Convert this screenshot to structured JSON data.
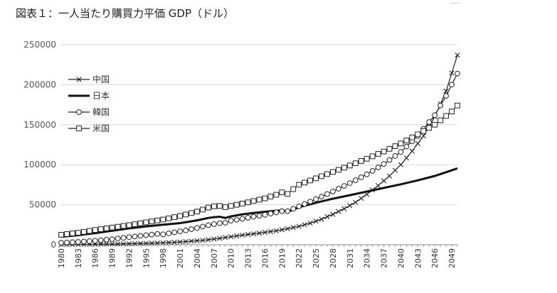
{
  "title": "図表１：一人当たり購買力平価 GDP（ドル）",
  "chart_data": {
    "type": "line",
    "title": "図表１：一人当たり購買力平価 GDP（ドル）",
    "xlabel": "",
    "ylabel": "",
    "ylim": [
      0,
      250000
    ],
    "yticks": [
      0,
      50000,
      100000,
      150000,
      200000,
      250000
    ],
    "ytick_labels": [
      "0",
      "50000",
      "100000",
      "150000",
      "200000",
      "250000"
    ],
    "xlim": [
      1980,
      2050
    ],
    "xtick_labels": [
      "1980",
      "1983",
      "1986",
      "1989",
      "1992",
      "1995",
      "1998",
      "2001",
      "2004",
      "2007",
      "2010",
      "2013",
      "2016",
      "2019",
      "2022",
      "2025",
      "2028",
      "2031",
      "2034",
      "2037",
      "2040",
      "2043",
      "2046",
      "2049"
    ],
    "grid": "horizontal",
    "legend_position": "top-left",
    "series": [
      {
        "name": "中国",
        "marker": "x",
        "color": "#222222",
        "points": [
          [
            1980,
            300
          ],
          [
            1985,
            600
          ],
          [
            1990,
            1000
          ],
          [
            1995,
            1800
          ],
          [
            2000,
            3000
          ],
          [
            2005,
            5500
          ],
          [
            2008,
            8000
          ],
          [
            2010,
            10000
          ],
          [
            2012,
            12000
          ],
          [
            2015,
            14500
          ],
          [
            2018,
            17500
          ],
          [
            2020,
            20000
          ],
          [
            2022,
            23000
          ],
          [
            2024,
            27000
          ],
          [
            2026,
            32000
          ],
          [
            2028,
            38000
          ],
          [
            2030,
            45000
          ],
          [
            2032,
            53000
          ],
          [
            2034,
            63000
          ],
          [
            2036,
            74000
          ],
          [
            2038,
            86000
          ],
          [
            2040,
            100000
          ],
          [
            2042,
            117000
          ],
          [
            2044,
            136000
          ],
          [
            2046,
            160000
          ],
          [
            2048,
            192000
          ],
          [
            2050,
            237000
          ]
        ]
      },
      {
        "name": "日本",
        "marker": "none",
        "color": "#111111",
        "points": [
          [
            1980,
            10000
          ],
          [
            1983,
            12000
          ],
          [
            1986,
            14500
          ],
          [
            1989,
            17500
          ],
          [
            1992,
            20500
          ],
          [
            1995,
            23000
          ],
          [
            1998,
            25000
          ],
          [
            2001,
            27000
          ],
          [
            2004,
            30500
          ],
          [
            2006,
            33500
          ],
          [
            2007,
            34500
          ],
          [
            2008,
            35000
          ],
          [
            2009,
            33500
          ],
          [
            2010,
            35500
          ],
          [
            2012,
            38000
          ],
          [
            2015,
            40500
          ],
          [
            2018,
            42500
          ],
          [
            2019,
            43000
          ],
          [
            2020,
            41500
          ],
          [
            2021,
            43500
          ],
          [
            2022,
            47000
          ],
          [
            2025,
            52500
          ],
          [
            2028,
            57500
          ],
          [
            2031,
            62000
          ],
          [
            2034,
            66500
          ],
          [
            2037,
            71000
          ],
          [
            2040,
            75500
          ],
          [
            2043,
            80500
          ],
          [
            2046,
            86000
          ],
          [
            2049,
            93000
          ],
          [
            2050,
            95500
          ]
        ]
      },
      {
        "name": "韓国",
        "marker": "circle",
        "color": "#222222",
        "points": [
          [
            1980,
            2500
          ],
          [
            1983,
            3500
          ],
          [
            1986,
            5000
          ],
          [
            1989,
            7000
          ],
          [
            1992,
            9500
          ],
          [
            1995,
            12000
          ],
          [
            1997,
            13500
          ],
          [
            1998,
            13000
          ],
          [
            2000,
            15500
          ],
          [
            2002,
            18000
          ],
          [
            2004,
            21000
          ],
          [
            2006,
            24500
          ],
          [
            2008,
            27000
          ],
          [
            2009,
            27500
          ],
          [
            2010,
            30000
          ],
          [
            2012,
            32500
          ],
          [
            2014,
            35000
          ],
          [
            2016,
            37500
          ],
          [
            2018,
            40500
          ],
          [
            2019,
            42000
          ],
          [
            2020,
            42000
          ],
          [
            2022,
            48000
          ],
          [
            2025,
            57000
          ],
          [
            2028,
            66500
          ],
          [
            2031,
            77000
          ],
          [
            2034,
            88000
          ],
          [
            2037,
            101000
          ],
          [
            2040,
            116000
          ],
          [
            2043,
            136000
          ],
          [
            2046,
            162000
          ],
          [
            2048,
            186000
          ],
          [
            2050,
            214000
          ]
        ]
      },
      {
        "name": "米国",
        "marker": "square",
        "color": "#222222",
        "points": [
          [
            1980,
            12500
          ],
          [
            1983,
            15000
          ],
          [
            1986,
            18500
          ],
          [
            1989,
            21500
          ],
          [
            1992,
            24500
          ],
          [
            1995,
            28000
          ],
          [
            1998,
            31500
          ],
          [
            2001,
            36000
          ],
          [
            2004,
            41500
          ],
          [
            2006,
            46500
          ],
          [
            2007,
            48000
          ],
          [
            2008,
            48500
          ],
          [
            2009,
            47000
          ],
          [
            2010,
            48500
          ],
          [
            2013,
            53000
          ],
          [
            2016,
            58000
          ],
          [
            2018,
            62500
          ],
          [
            2019,
            65500
          ],
          [
            2020,
            63500
          ],
          [
            2021,
            69500
          ],
          [
            2022,
            75000
          ],
          [
            2025,
            83000
          ],
          [
            2028,
            91000
          ],
          [
            2031,
            99000
          ],
          [
            2034,
            107500
          ],
          [
            2037,
            116500
          ],
          [
            2040,
            126500
          ],
          [
            2043,
            138000
          ],
          [
            2046,
            150000
          ],
          [
            2049,
            166500
          ],
          [
            2050,
            174000
          ]
        ]
      }
    ]
  },
  "decor": {
    "corner_mark_color": "#cfcfcf"
  }
}
